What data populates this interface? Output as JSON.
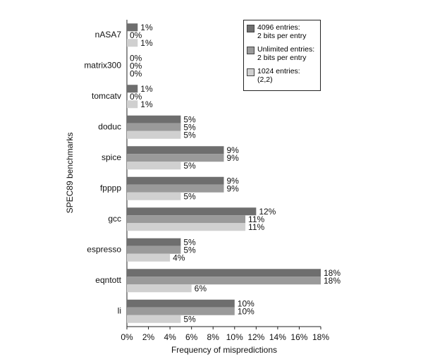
{
  "chart_data": {
    "type": "hbar",
    "x_label": "Frequency of mispredictions",
    "y_label": "SPEC89 benchmarks",
    "categories": [
      "nASA7",
      "matrix300",
      "tomcatv",
      "doduc",
      "spice",
      "fpppp",
      "gcc",
      "espresso",
      "eqntott",
      "li"
    ],
    "series": [
      {
        "name": "4096 entries:\n2 bits per entry",
        "color": "#6e6e6e",
        "values": [
          1,
          0,
          1,
          5,
          9,
          9,
          12,
          5,
          18,
          10
        ],
        "value_labels": [
          "1%",
          "0%",
          "1%",
          "5%",
          "9%",
          "9%",
          "12%",
          "5%",
          "18%",
          "10%"
        ]
      },
      {
        "name": "Unlimited entries:\n2 bits per entry",
        "color": "#9a9a9a",
        "values": [
          0,
          0,
          0,
          5,
          9,
          9,
          11,
          5,
          18,
          10
        ],
        "value_labels": [
          "0%",
          "0%",
          "0%",
          "5%",
          "9%",
          "9%",
          "11%",
          "5%",
          "18%",
          "10%"
        ]
      },
      {
        "name": "1024 entries:\n(2,2)",
        "color": "#d0d0d0",
        "values": [
          1,
          0,
          1,
          5,
          5,
          5,
          11,
          4,
          6,
          5
        ],
        "value_labels": [
          "1%",
          "0%",
          "1%",
          "5%",
          "5%",
          "5%",
          "11%",
          "4%",
          "6%",
          "5%"
        ]
      }
    ],
    "xlim": [
      0,
      18
    ],
    "xticks": [
      {
        "value": 0,
        "label": "0%"
      },
      {
        "value": 2,
        "label": "2%"
      },
      {
        "value": 4,
        "label": "4%"
      },
      {
        "value": 6,
        "label": "6%"
      },
      {
        "value": 8,
        "label": "8%"
      },
      {
        "value": 10,
        "label": "10%"
      },
      {
        "value": 12,
        "label": "12%"
      },
      {
        "value": 14,
        "label": "14%"
      },
      {
        "value": 16,
        "label": "16%"
      },
      {
        "value": 18,
        "label": "18%"
      }
    ],
    "legend": "upper right"
  }
}
